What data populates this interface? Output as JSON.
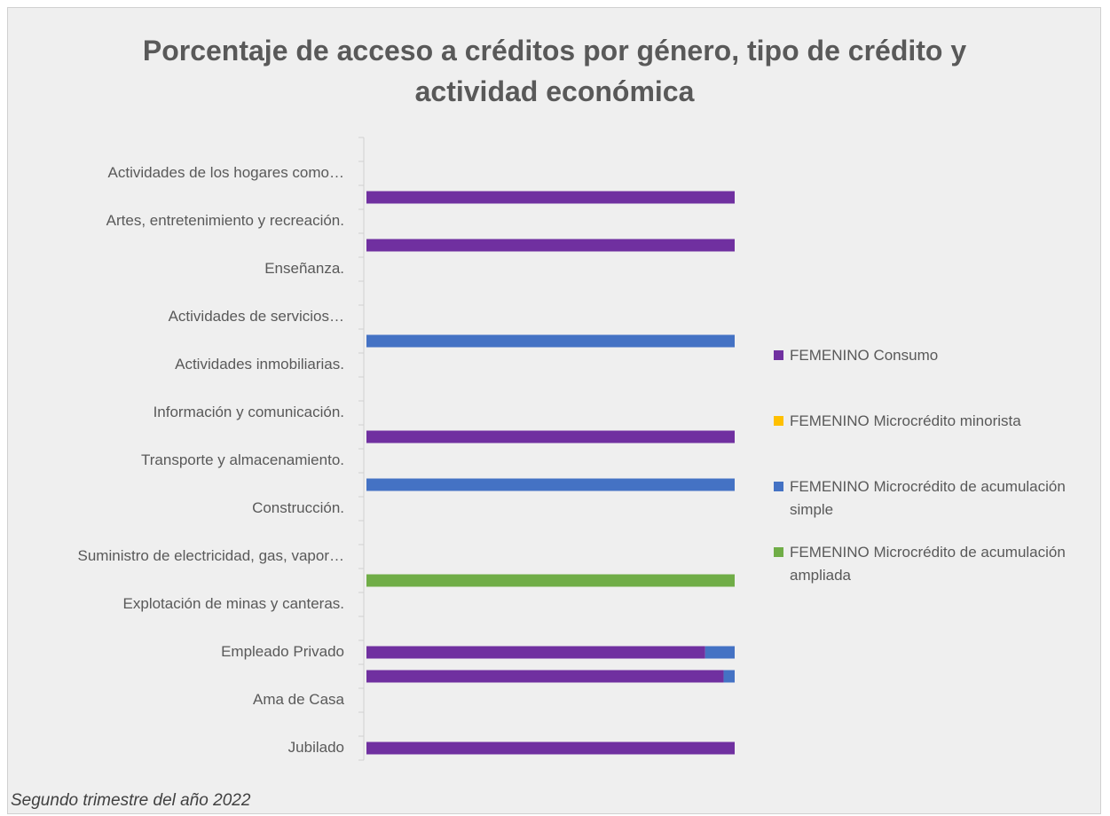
{
  "chart_data": {
    "type": "stacked-bar-horizontal",
    "title": "Porcentaje de acceso a créditos por género, tipo de crédito y actividad económica",
    "note": "Segundo trimestre del año 2022",
    "categories": [
      null,
      "Actividades de los hogares como…",
      null,
      "Artes, entretenimiento y recreación.",
      null,
      "Enseñanza.",
      null,
      "Actividades de servicios…",
      null,
      "Actividades inmobiliarias.",
      null,
      "Información y comunicación.",
      null,
      "Transporte y almacenamiento.",
      null,
      "Construcción.",
      null,
      "Suministro de electricidad, gas, vapor…",
      null,
      "Explotación de minas y canteras.",
      null,
      "Empleado Privado",
      null,
      "Ama de Casa",
      null,
      "Jubilado"
    ],
    "xlim": [
      0,
      100
    ],
    "series": [
      {
        "name": "FEMENINO Consumo",
        "color": "#7030a0",
        "values": [
          null,
          null,
          100,
          null,
          100,
          null,
          null,
          null,
          null,
          null,
          null,
          null,
          100,
          null,
          null,
          null,
          null,
          null,
          null,
          null,
          null,
          92,
          97,
          null,
          null,
          100
        ]
      },
      {
        "name": "FEMENINO Microcrédito minorista",
        "color": "#ffc000",
        "values": [
          null,
          null,
          null,
          null,
          null,
          null,
          null,
          null,
          null,
          null,
          null,
          null,
          null,
          null,
          null,
          null,
          null,
          null,
          null,
          null,
          null,
          null,
          null,
          null,
          null,
          null
        ]
      },
      {
        "name": "FEMENINO Microcrédito de acumulación simple",
        "color": "#4472c4",
        "values": [
          null,
          null,
          null,
          null,
          null,
          null,
          null,
          null,
          100,
          null,
          null,
          null,
          null,
          null,
          100,
          null,
          null,
          null,
          null,
          null,
          null,
          8,
          3,
          null,
          null,
          null
        ]
      },
      {
        "name": "FEMENINO Microcrédito de acumulación ampliada",
        "color": "#70ad47",
        "values": [
          null,
          null,
          null,
          null,
          null,
          null,
          null,
          null,
          null,
          null,
          null,
          null,
          null,
          null,
          null,
          null,
          null,
          null,
          100,
          null,
          null,
          null,
          null,
          null,
          null,
          null
        ]
      }
    ]
  }
}
